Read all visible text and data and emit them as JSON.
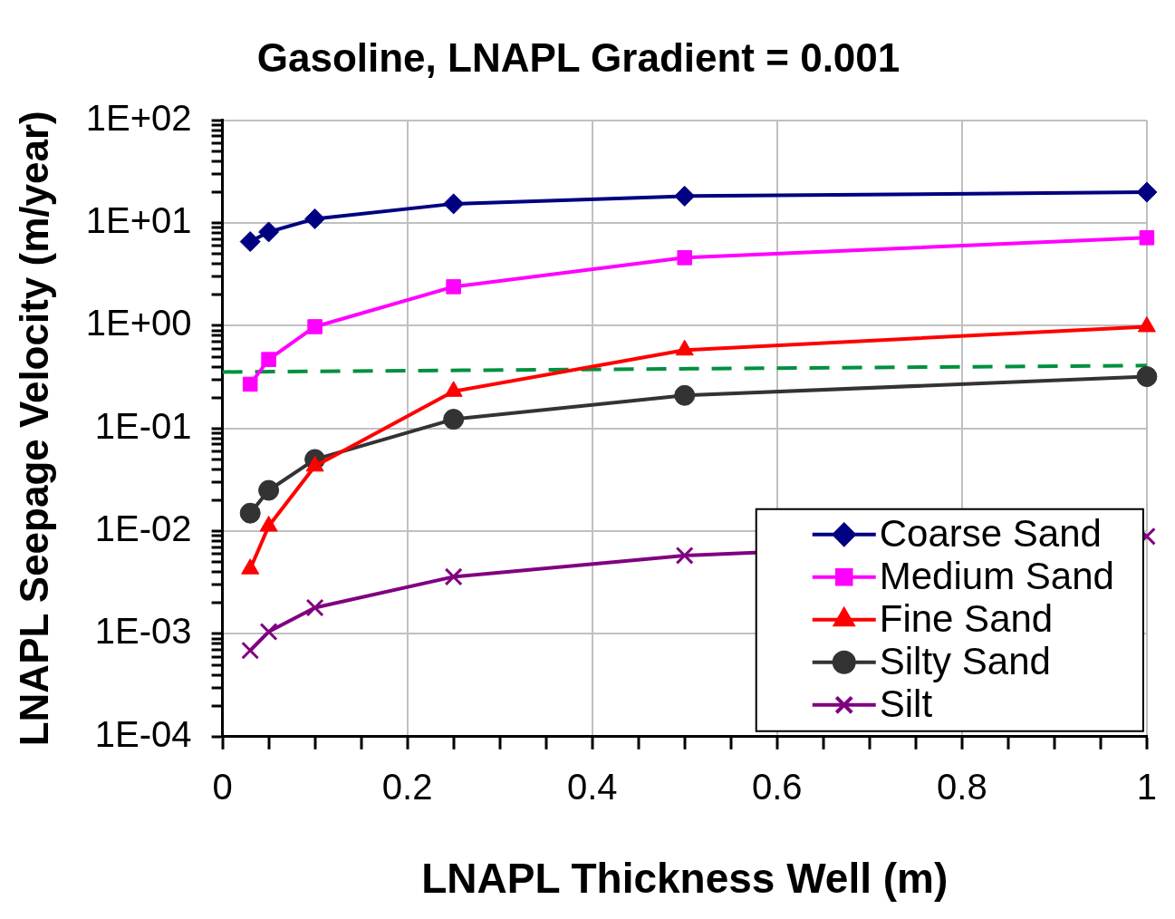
{
  "chart_data": {
    "type": "line",
    "title": "Gasoline, LNAPL Gradient = 0.001",
    "xlabel": "LNAPL Thickness Well (m)",
    "ylabel": "LNAPL Seepage Velocity (m/year)",
    "x": [
      0.03,
      0.05,
      0.1,
      0.25,
      0.5,
      1.0
    ],
    "series": [
      {
        "name": "Coarse Sand",
        "color": "#000080",
        "marker": "diamond",
        "values": [
          6.6,
          8.2,
          11,
          15.4,
          18.3,
          20
        ]
      },
      {
        "name": "Medium Sand",
        "color": "#ff00ff",
        "marker": "square",
        "values": [
          0.27,
          0.47,
          0.98,
          2.4,
          4.6,
          7.2
        ]
      },
      {
        "name": "Fine Sand",
        "color": "#ff0000",
        "marker": "triangle",
        "values": [
          0.0043,
          0.0112,
          0.043,
          0.23,
          0.58,
          0.98
        ]
      },
      {
        "name": "Silty Sand",
        "color": "#333333",
        "marker": "circle",
        "values": [
          0.015,
          0.025,
          0.05,
          0.123,
          0.21,
          0.32
        ]
      },
      {
        "name": "Silt",
        "color": "#800080",
        "marker": "cross",
        "values": [
          0.00069,
          0.00105,
          0.0018,
          0.0036,
          0.0058,
          0.0089
        ]
      },
      {
        "color": "#009040",
        "marker": "none",
        "line_style": "dashed",
        "x": [
          0,
          1
        ],
        "values": [
          0.355,
          0.41
        ]
      }
    ],
    "log": "y",
    "xlim": [
      0,
      1
    ],
    "xticks": [
      0,
      {
        "value": 0.05,
        "label": null
      },
      {
        "value": 0.1,
        "label": null
      },
      {
        "value": 0.15,
        "label": null
      },
      0.2,
      {
        "value": 0.25,
        "label": null
      },
      {
        "value": 0.3,
        "label": null
      },
      {
        "value": 0.35,
        "label": null
      },
      0.4,
      {
        "value": 0.45,
        "label": null
      },
      {
        "value": 0.5,
        "label": null
      },
      {
        "value": 0.55,
        "label": null
      },
      0.6,
      {
        "value": 0.65,
        "label": null
      },
      {
        "value": 0.7,
        "label": null
      },
      {
        "value": 0.75,
        "label": null
      },
      0.8,
      {
        "value": 0.85,
        "label": null
      },
      {
        "value": 0.9,
        "label": null
      },
      {
        "value": 0.95,
        "label": null
      },
      1
    ],
    "ylim": [
      0.0001,
      100
    ],
    "yticks": [
      {
        "value": 0.0001,
        "label": "1E-04"
      },
      {
        "value": 0.0002,
        "label": null
      },
      {
        "value": 0.0003,
        "label": null
      },
      {
        "value": 0.0004,
        "label": null
      },
      {
        "value": 0.0005,
        "label": null
      },
      {
        "value": 0.0006,
        "label": null
      },
      {
        "value": 0.0007,
        "label": null
      },
      {
        "value": 0.0008,
        "label": null
      },
      {
        "value": 0.0009,
        "label": null
      },
      {
        "value": 0.001,
        "label": "1E-03"
      },
      {
        "value": 0.002,
        "label": null
      },
      {
        "value": 0.003,
        "label": null
      },
      {
        "value": 0.004,
        "label": null
      },
      {
        "value": 0.005,
        "label": null
      },
      {
        "value": 0.006,
        "label": null
      },
      {
        "value": 0.007,
        "label": null
      },
      {
        "value": 0.008,
        "label": null
      },
      {
        "value": 0.009,
        "label": null
      },
      {
        "value": 0.01,
        "label": "1E-02"
      },
      {
        "value": 0.02,
        "label": null
      },
      {
        "value": 0.03,
        "label": null
      },
      {
        "value": 0.04,
        "label": null
      },
      {
        "value": 0.05,
        "label": null
      },
      {
        "value": 0.06,
        "label": null
      },
      {
        "value": 0.07,
        "label": null
      },
      {
        "value": 0.08,
        "label": null
      },
      {
        "value": 0.09,
        "label": null
      },
      {
        "value": 0.1,
        "label": "1E-01"
      },
      {
        "value": 0.2,
        "label": null
      },
      {
        "value": 0.3,
        "label": null
      },
      {
        "value": 0.4,
        "label": null
      },
      {
        "value": 0.5,
        "label": null
      },
      {
        "value": 0.6,
        "label": null
      },
      {
        "value": 0.7,
        "label": null
      },
      {
        "value": 0.8,
        "label": null
      },
      {
        "value": 0.9,
        "label": null
      },
      {
        "value": 1,
        "label": "1E+00"
      },
      {
        "value": 2,
        "label": null
      },
      {
        "value": 3,
        "label": null
      },
      {
        "value": 4,
        "label": null
      },
      {
        "value": 5,
        "label": null
      },
      {
        "value": 6,
        "label": null
      },
      {
        "value": 7,
        "label": null
      },
      {
        "value": 8,
        "label": null
      },
      {
        "value": 9,
        "label": null
      },
      {
        "value": 10,
        "label": "1E+01"
      },
      {
        "value": 20,
        "label": null
      },
      {
        "value": 30,
        "label": null
      },
      {
        "value": 40,
        "label": null
      },
      {
        "value": 50,
        "label": null
      },
      {
        "value": 60,
        "label": null
      },
      {
        "value": 70,
        "label": null
      },
      {
        "value": 80,
        "label": null
      },
      {
        "value": 90,
        "label": null
      },
      {
        "value": 100,
        "label": "1E+02"
      }
    ],
    "grid": true,
    "legend": "bottom right"
  }
}
